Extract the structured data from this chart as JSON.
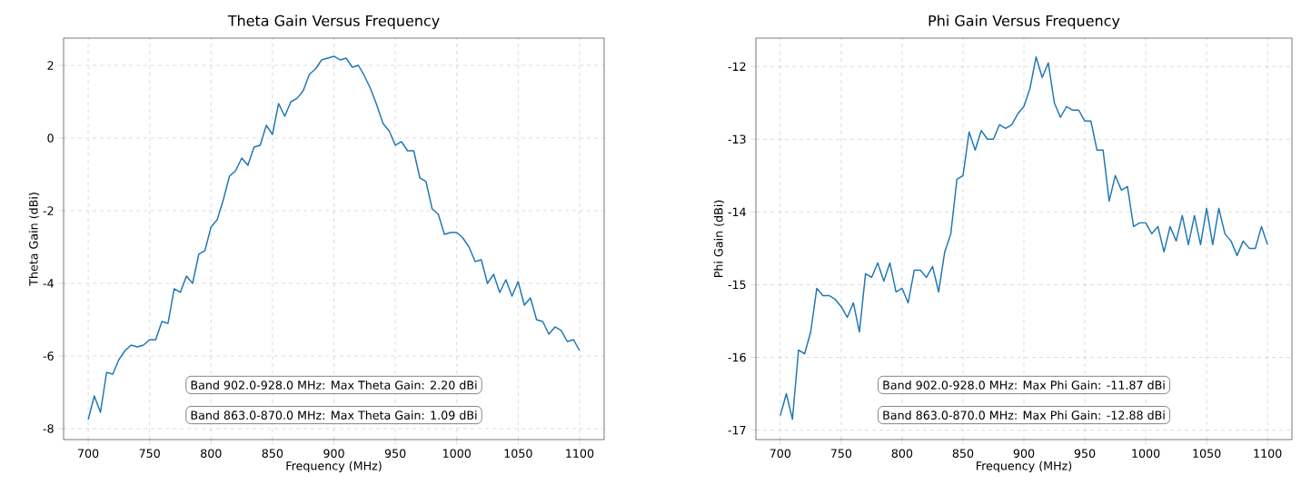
{
  "chart_data": [
    {
      "type": "line",
      "title": "Theta Gain Versus Frequency",
      "xlabel": "Frequency (MHz)",
      "ylabel": "Theta Gain (dBi)",
      "x": [
        700,
        705,
        710,
        715,
        720,
        725,
        730,
        735,
        740,
        745,
        750,
        755,
        760,
        765,
        770,
        775,
        780,
        785,
        790,
        795,
        800,
        805,
        810,
        815,
        820,
        825,
        830,
        835,
        840,
        845,
        850,
        855,
        860,
        865,
        870,
        875,
        880,
        885,
        890,
        895,
        900,
        905,
        910,
        915,
        920,
        925,
        930,
        935,
        940,
        945,
        950,
        955,
        960,
        965,
        970,
        975,
        980,
        985,
        990,
        995,
        1000,
        1005,
        1010,
        1015,
        1020,
        1025,
        1030,
        1035,
        1040,
        1045,
        1050,
        1055,
        1060,
        1065,
        1070,
        1075,
        1080,
        1085,
        1090,
        1095,
        1100
      ],
      "series": [
        {
          "color": "#1f77b4",
          "values": [
            -7.75,
            -7.1,
            -7.55,
            -6.45,
            -6.5,
            -6.1,
            -5.85,
            -5.7,
            -5.75,
            -5.7,
            -5.55,
            -5.55,
            -5.05,
            -5.1,
            -4.15,
            -4.25,
            -3.8,
            -4.0,
            -3.2,
            -3.1,
            -2.45,
            -2.25,
            -1.7,
            -1.05,
            -0.9,
            -0.55,
            -0.75,
            -0.25,
            -0.2,
            0.35,
            0.1,
            0.95,
            0.6,
            1.0,
            1.09,
            1.3,
            1.75,
            1.9,
            2.15,
            2.2,
            2.25,
            2.15,
            2.2,
            1.95,
            2.0,
            1.7,
            1.35,
            0.9,
            0.4,
            0.2,
            -0.2,
            -0.1,
            -0.35,
            -0.35,
            -1.1,
            -1.2,
            -1.95,
            -2.1,
            -2.65,
            -2.6,
            -2.6,
            -2.75,
            -3.0,
            -3.4,
            -3.35,
            -4.0,
            -3.75,
            -4.25,
            -3.9,
            -4.35,
            -3.95,
            -4.6,
            -4.4,
            -5.0,
            -5.05,
            -5.4,
            -5.2,
            -5.3,
            -5.6,
            -5.55,
            -5.85
          ]
        }
      ],
      "xlim": [
        680,
        1120
      ],
      "ylim": [
        -8.3,
        2.75
      ],
      "xticks": [
        700,
        750,
        800,
        850,
        900,
        950,
        1000,
        1050,
        1100
      ],
      "yticks": [
        -8,
        -6,
        -4,
        -2,
        0,
        2
      ],
      "grid": true,
      "annotations": [
        "Band 902.0-928.0 MHz: Max Theta Gain: 2.20 dBi",
        "Band 863.0-870.0 MHz: Max Theta Gain: 1.09 dBi"
      ]
    },
    {
      "type": "line",
      "title": "Phi Gain Versus Frequency",
      "xlabel": "Frequency (MHz)",
      "ylabel": "Phi Gain (dBi)",
      "x": [
        700,
        705,
        710,
        715,
        720,
        725,
        730,
        735,
        740,
        745,
        750,
        755,
        760,
        765,
        770,
        775,
        780,
        785,
        790,
        795,
        800,
        805,
        810,
        815,
        820,
        825,
        830,
        835,
        840,
        845,
        850,
        855,
        860,
        865,
        870,
        875,
        880,
        885,
        890,
        895,
        900,
        905,
        910,
        915,
        920,
        925,
        930,
        935,
        940,
        945,
        950,
        955,
        960,
        965,
        970,
        975,
        980,
        985,
        990,
        995,
        1000,
        1005,
        1010,
        1015,
        1020,
        1025,
        1030,
        1035,
        1040,
        1045,
        1050,
        1055,
        1060,
        1065,
        1070,
        1075,
        1080,
        1085,
        1090,
        1095,
        1100
      ],
      "series": [
        {
          "color": "#1f77b4",
          "values": [
            -16.8,
            -16.5,
            -16.85,
            -15.9,
            -15.95,
            -15.65,
            -15.05,
            -15.15,
            -15.15,
            -15.2,
            -15.3,
            -15.45,
            -15.25,
            -15.65,
            -14.85,
            -14.9,
            -14.7,
            -14.95,
            -14.7,
            -15.1,
            -15.05,
            -15.25,
            -14.8,
            -14.8,
            -14.9,
            -14.75,
            -15.1,
            -14.55,
            -14.3,
            -13.55,
            -13.5,
            -12.9,
            -13.15,
            -12.88,
            -13.0,
            -13.0,
            -12.8,
            -12.85,
            -12.8,
            -12.65,
            -12.55,
            -12.3,
            -11.87,
            -12.15,
            -11.95,
            -12.5,
            -12.7,
            -12.55,
            -12.6,
            -12.6,
            -12.75,
            -12.75,
            -13.15,
            -13.15,
            -13.85,
            -13.5,
            -13.7,
            -13.65,
            -14.2,
            -14.15,
            -14.15,
            -14.3,
            -14.2,
            -14.55,
            -14.2,
            -14.4,
            -14.05,
            -14.45,
            -14.05,
            -14.45,
            -13.95,
            -14.45,
            -13.95,
            -14.3,
            -14.4,
            -14.6,
            -14.4,
            -14.5,
            -14.5,
            -14.2,
            -14.45
          ]
        }
      ],
      "xlim": [
        680,
        1120
      ],
      "ylim": [
        -17.13,
        -11.61
      ],
      "xticks": [
        700,
        750,
        800,
        850,
        900,
        950,
        1000,
        1050,
        1100
      ],
      "yticks": [
        -17,
        -16,
        -15,
        -14,
        -13,
        -12
      ],
      "grid": true,
      "annotations": [
        "Band 902.0-928.0 MHz: Max Phi Gain: -11.87 dBi",
        "Band 863.0-870.0 MHz: Max Phi Gain: -12.88 dBi"
      ]
    }
  ]
}
